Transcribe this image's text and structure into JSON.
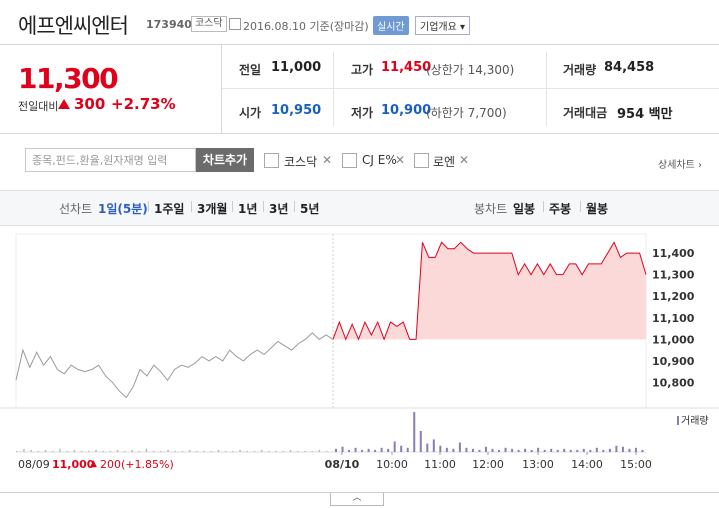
{
  "header": {
    "company": "에프엔씨엔터",
    "code": "173940",
    "market_badge": "코스닥",
    "date_text": "2016.08.10 기준(장마감)",
    "live_badge": "실시간",
    "info_button": "기업개요 ▾"
  },
  "quote": {
    "price": "11,300",
    "change_label": "전일대비",
    "change_value": "300",
    "change_pct": "+2.73%",
    "prev_label": "전일",
    "prev_value": "11,000",
    "high_label": "고가",
    "high_value": "11,450",
    "upper_limit": "(상한가 14,300)",
    "volume_label": "거래량",
    "volume_value": "84,458",
    "open_label": "시가",
    "open_value": "10,950",
    "low_label": "저가",
    "low_value": "10,900",
    "lower_limit": "(하한가 7,700)",
    "amount_label": "거래대금",
    "amount_value": "954 백만"
  },
  "compare": {
    "search_placeholder": "종목,펀드,환율,원자재명 입력",
    "add_button": "차트추가",
    "items": [
      {
        "name": "코스닥"
      },
      {
        "name": "CJ E%"
      },
      {
        "name": "로엔"
      }
    ],
    "remove_glyph": "✕",
    "detail_link": "상세차트 ›"
  },
  "tabs": {
    "line_label": "선차트",
    "line_items": [
      "1일(5분)",
      "1주일",
      "3개월",
      "1년",
      "3년",
      "5년"
    ],
    "candle_label": "봉차트",
    "candle_items": [
      "일봉",
      "주봉",
      "월봉"
    ]
  },
  "chart_data": {
    "type": "line",
    "y_ticks": [
      "11,400",
      "11,300",
      "11,200",
      "11,100",
      "11,000",
      "10,900",
      "10,800"
    ],
    "ylim": [
      10700,
      11470
    ],
    "x_ticks": [
      "08/10",
      "10:00",
      "11:00",
      "12:00",
      "13:00",
      "14:00",
      "15:00"
    ],
    "baseline": 11000,
    "prev_day_series": [
      10810,
      10950,
      10870,
      10940,
      10880,
      10920,
      10860,
      10840,
      10880,
      10860,
      10850,
      10860,
      10880,
      10830,
      10800,
      10760,
      10730,
      10780,
      10860,
      10830,
      10880,
      10850,
      10810,
      10860,
      10880,
      10870,
      10890,
      10920,
      10900,
      10920,
      10900,
      10950,
      10920,
      10900,
      10930,
      10950,
      10930,
      10960,
      10990,
      10970,
      10950,
      10980,
      11000,
      11030,
      11000,
      11020,
      11000
    ],
    "today_series": [
      11000,
      11080,
      11000,
      11070,
      11000,
      11080,
      11020,
      11080,
      11000,
      11080,
      11060,
      11080,
      11000,
      11000,
      11450,
      11380,
      11380,
      11450,
      11420,
      11420,
      11450,
      11420,
      11400,
      11400,
      11400,
      11400,
      11400,
      11400,
      11400,
      11300,
      11350,
      11300,
      11350,
      11300,
      11350,
      11300,
      11300,
      11350,
      11350,
      11300,
      11350,
      11350,
      11350,
      11400,
      11450,
      11380,
      11400,
      11400,
      11400,
      11300
    ],
    "volume_label": "거래량",
    "prev_volumes": [
      1,
      3,
      2,
      1,
      2,
      1,
      3,
      1,
      2,
      1,
      1,
      2,
      1,
      1,
      2,
      1,
      2,
      1,
      3,
      1,
      1,
      2,
      1,
      1,
      2,
      1,
      1,
      1,
      2,
      1,
      1,
      2,
      1,
      1,
      2,
      1,
      1,
      1,
      2,
      1,
      1,
      1,
      2,
      1
    ],
    "today_volumes": [
      3,
      5,
      2,
      4,
      2,
      3,
      2,
      4,
      3,
      10,
      6,
      4,
      38,
      20,
      8,
      12,
      6,
      4,
      3,
      9,
      4,
      3,
      2,
      5,
      3,
      2,
      4,
      3,
      2,
      3,
      2,
      4,
      2,
      3,
      2,
      3,
      2,
      2,
      3,
      2,
      4,
      2,
      3,
      6,
      5,
      3,
      4,
      2
    ],
    "footer_date": "08/09",
    "footer_price": "11,000",
    "footer_change": "200",
    "footer_pct": "(+1.85%)",
    "collapse_glyph": "︿",
    "colors": {
      "up": "#e0001a",
      "prev_line": "#9a9a9a",
      "fill": "#fbd9d9",
      "volume": "#8b7bb8"
    }
  }
}
